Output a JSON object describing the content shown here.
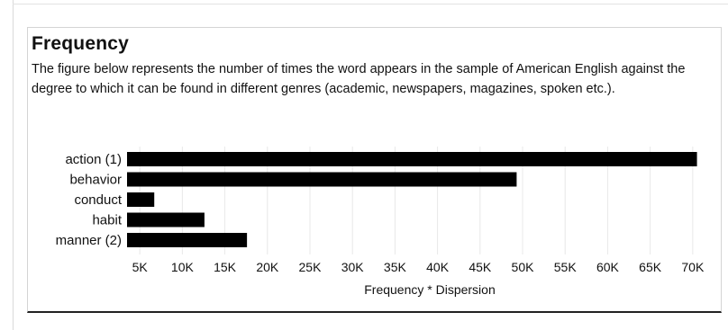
{
  "header": {
    "title": "Frequency",
    "description": "The figure below represents the number of times the word appears in the sample of American English against the degree to which it can be found in different genres (academic, newspapers, magazines, spoken etc.)."
  },
  "chart_data": {
    "type": "bar",
    "orientation": "horizontal",
    "categories": [
      "action (1)",
      "behavior",
      "conduct",
      "habit",
      "manner (2)"
    ],
    "values": [
      70500,
      49300,
      6700,
      12600,
      17600
    ],
    "xlabel": "Frequency * Dispersion",
    "ylabel": "",
    "xlim": [
      3500,
      71500
    ],
    "xticks": [
      5000,
      10000,
      15000,
      20000,
      25000,
      30000,
      35000,
      40000,
      45000,
      50000,
      55000,
      60000,
      65000,
      70000
    ],
    "xtick_labels": [
      "5K",
      "10K",
      "15K",
      "20K",
      "25K",
      "30K",
      "35K",
      "40K",
      "45K",
      "50K",
      "55K",
      "60K",
      "65K",
      "70K"
    ],
    "bar_color": "#000000",
    "grid": true
  }
}
